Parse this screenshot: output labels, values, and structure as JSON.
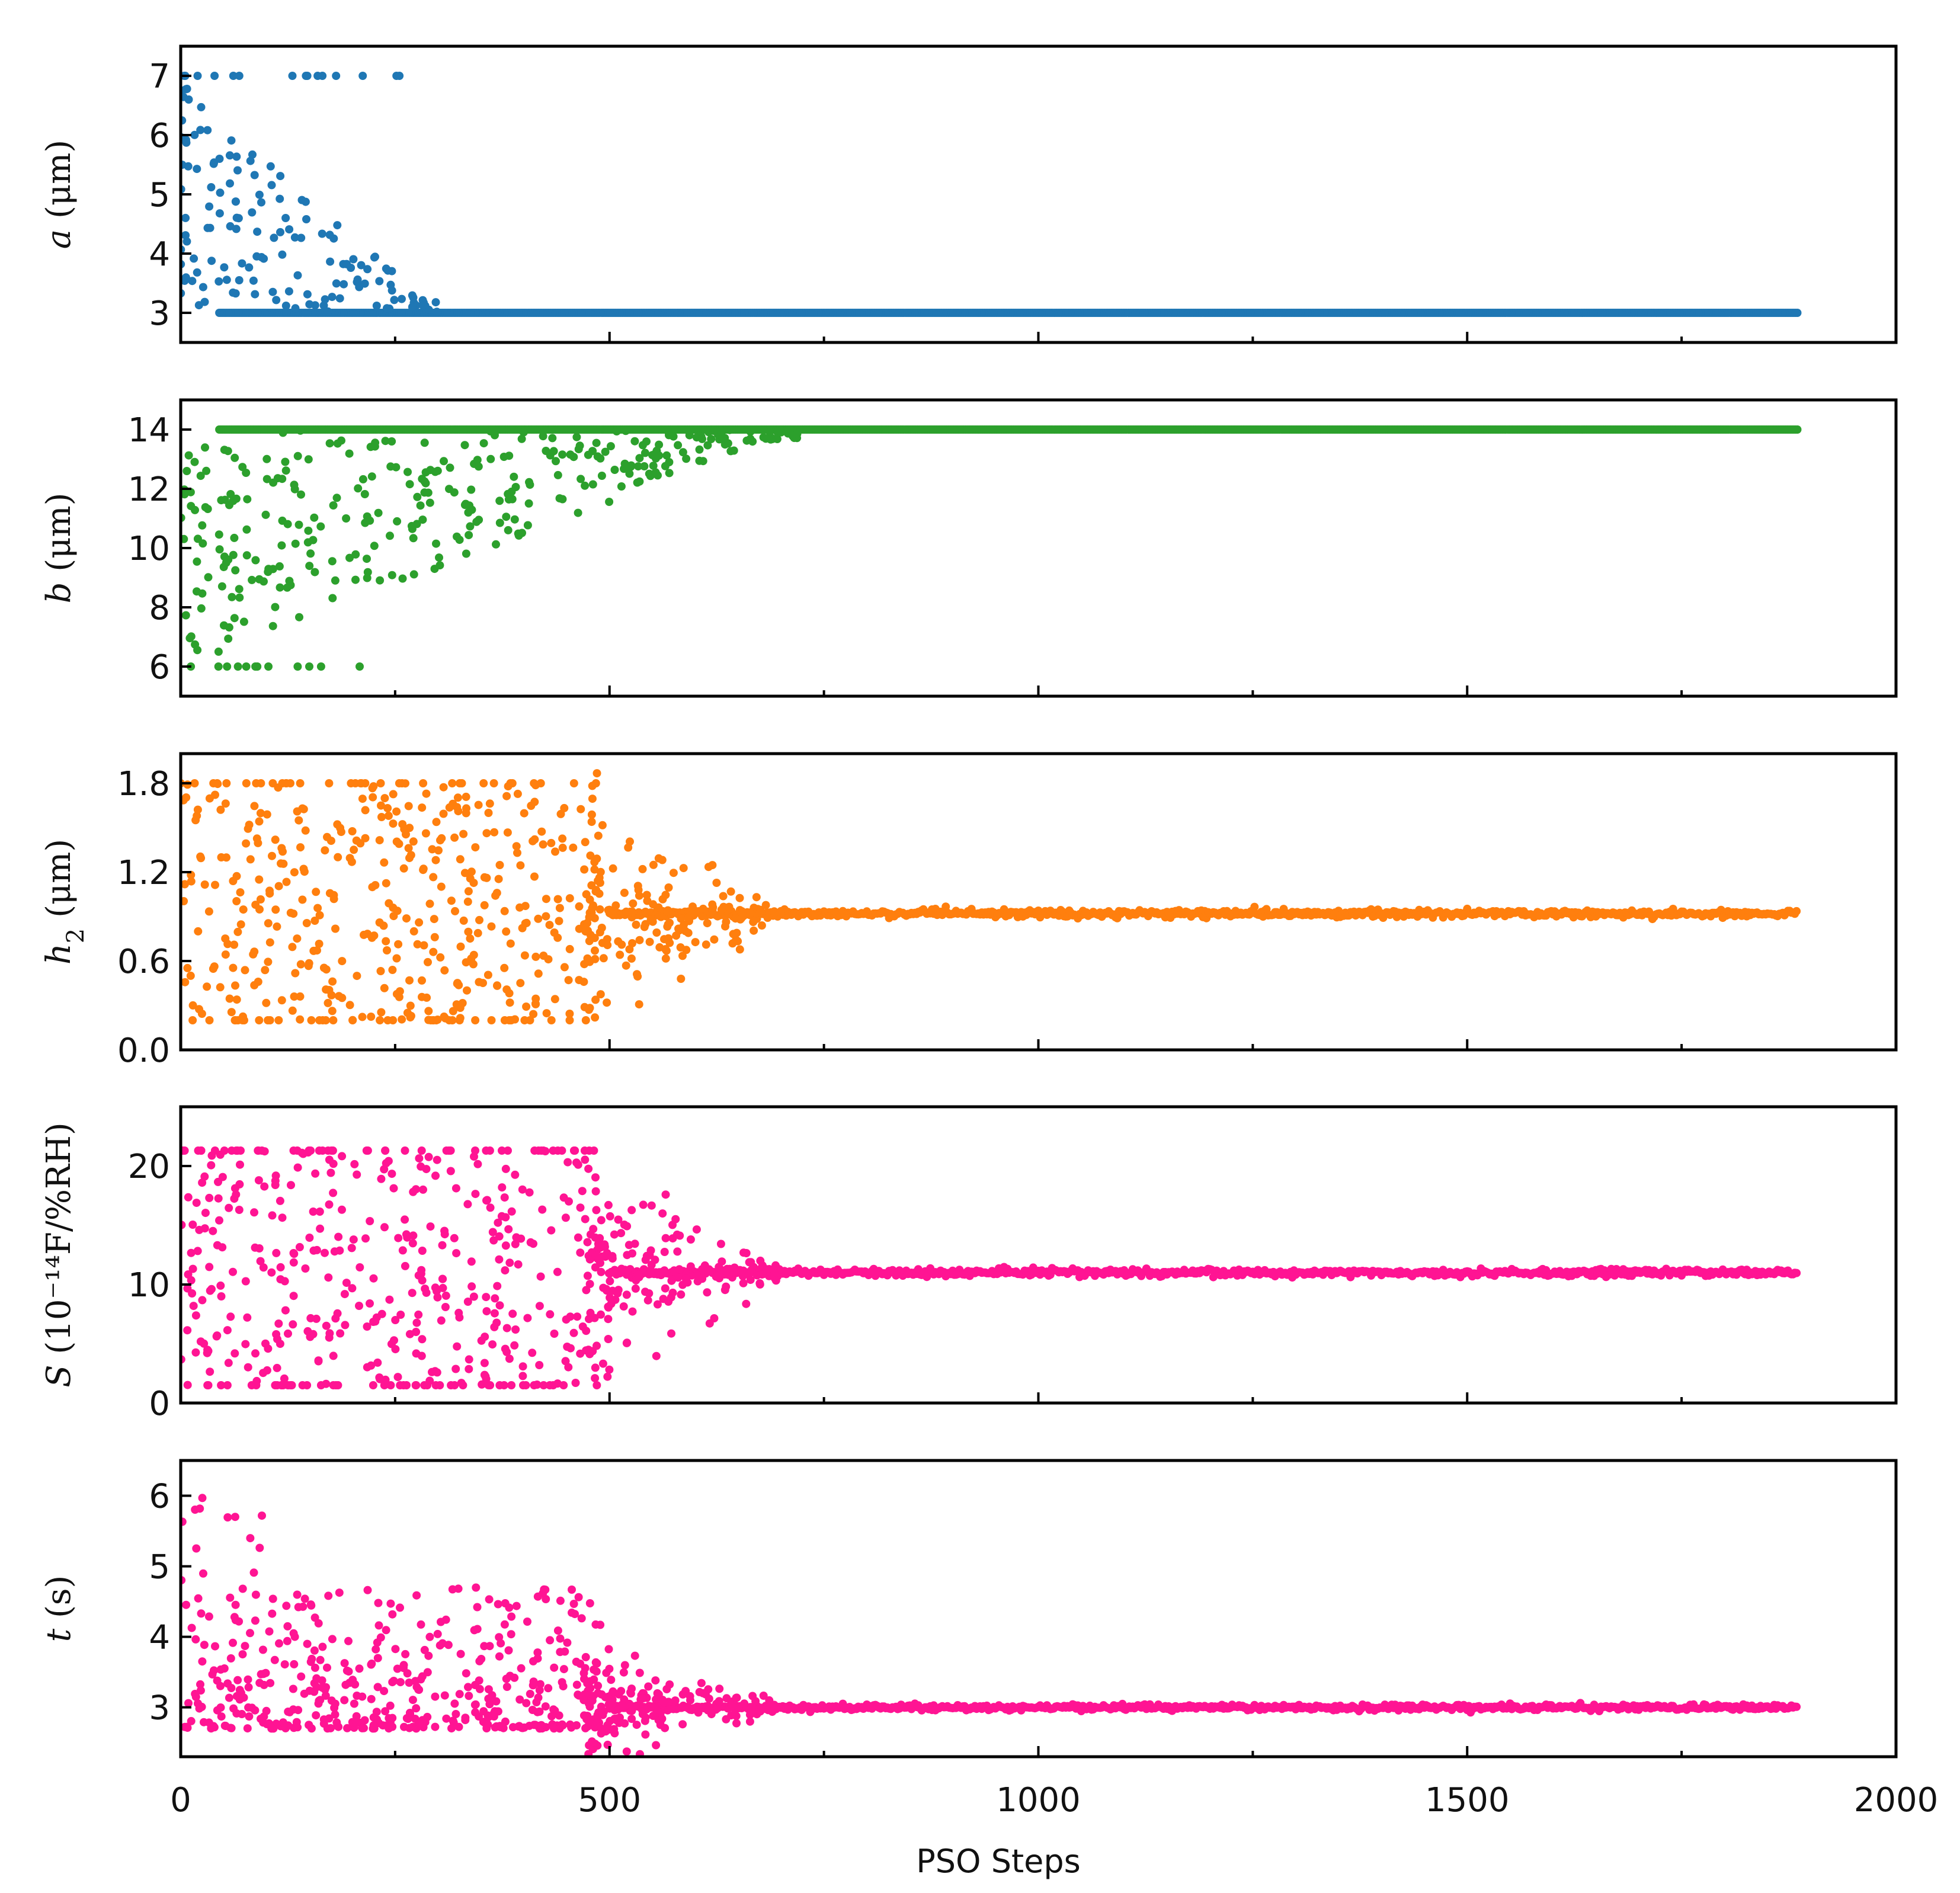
{
  "chart_data": {
    "type": "scatter",
    "xlabel": "PSO Steps",
    "xlim": [
      0,
      2000
    ],
    "xticks": [
      0,
      500,
      1000,
      1500,
      2000
    ],
    "xtick_labels": [
      "0",
      "500",
      "1000",
      "1500",
      "2000"
    ],
    "x_minor_ticks": [
      250,
      750,
      1250,
      1750
    ],
    "steps_range": [
      0,
      1885
    ],
    "panels": [
      {
        "id": "a",
        "ylabel_var": "a",
        "ylabel_sub": "",
        "ylabel_rest": " (μm)",
        "ylim": [
          2.5,
          7.5
        ],
        "yticks": [
          3,
          4,
          5,
          6,
          7
        ],
        "ytick_labels": [
          "3",
          "4",
          "5",
          "6",
          "7"
        ],
        "color": "#1f77b4",
        "converged_value": 3.0,
        "converge_start": 45,
        "scatter_end": 300,
        "explore_range": [
          3.0,
          7.0
        ],
        "noise": 0.0
      },
      {
        "id": "b",
        "ylabel_var": "b",
        "ylabel_sub": "",
        "ylabel_rest": " (μm)",
        "ylim": [
          5,
          15
        ],
        "yticks": [
          6,
          8,
          10,
          12,
          14
        ],
        "ytick_labels": [
          "6",
          "8",
          "10",
          "12",
          "14"
        ],
        "color": "#2ca02c",
        "converged_value": 14.0,
        "converge_start": 45,
        "scatter_end": 720,
        "explore_range": [
          6.0,
          14.0
        ],
        "noise": 0.0
      },
      {
        "id": "h2",
        "ylabel_var": "h",
        "ylabel_sub": "2",
        "ylabel_rest": " (μm)",
        "ylim": [
          0.0,
          2.0
        ],
        "yticks": [
          0.0,
          0.6,
          1.2,
          1.8
        ],
        "ytick_labels": [
          "0.0",
          "0.6",
          "1.2",
          "1.8"
        ],
        "color": "#ff7f0e",
        "converged_value": 0.92,
        "converge_start": 500,
        "scatter_end": 700,
        "explore_range": [
          0.2,
          1.8
        ],
        "noise": 0.012
      },
      {
        "id": "S",
        "ylabel_var": "S",
        "ylabel_sub": "",
        "ylabel_rest": " (10⁻¹⁴F/%RH)",
        "ylim": [
          0,
          25
        ],
        "yticks": [
          0,
          10,
          20
        ],
        "ytick_labels": [
          "0",
          "10",
          "20"
        ],
        "color": "#ff1493",
        "converged_value": 11.0,
        "converge_start": 500,
        "scatter_end": 700,
        "explore_range": [
          1.5,
          21.3
        ],
        "noise": 0.15
      },
      {
        "id": "t",
        "ylabel_var": "t",
        "ylabel_sub": "",
        "ylabel_rest": " (s)",
        "ylim": [
          2.3,
          6.5
        ],
        "yticks": [
          3,
          4,
          5,
          6
        ],
        "ytick_labels": [
          "3",
          "4",
          "5",
          "6"
        ],
        "color": "#ff1493",
        "converged_value": 3.0,
        "converge_start": 500,
        "scatter_end": 700,
        "explore_range": [
          2.7,
          6.0
        ],
        "noise": 0.02
      }
    ]
  }
}
